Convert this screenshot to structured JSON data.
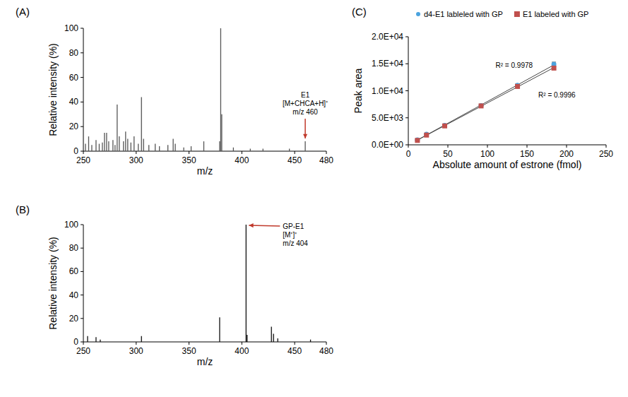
{
  "chart_data": [
    {
      "panel": "(A)",
      "type": "stem",
      "xlabel": "m/z",
      "ylabel": "Relative intensity (%)",
      "xlim": [
        250,
        480
      ],
      "xticks": [
        250,
        300,
        350,
        400,
        450,
        480
      ],
      "ylim": [
        0,
        100
      ],
      "yticks": [
        0,
        20,
        40,
        60,
        80,
        100
      ],
      "color": "#555555",
      "x": [
        252,
        255,
        258,
        262,
        265,
        268,
        270,
        272,
        274,
        278,
        280,
        282,
        284,
        288,
        290,
        292,
        295,
        298,
        302,
        305,
        307,
        312,
        318,
        322,
        330,
        335,
        337,
        345,
        352,
        364,
        379,
        380,
        381,
        392,
        408,
        420,
        445,
        460
      ],
      "values": [
        6,
        12,
        5,
        9,
        6,
        7,
        15,
        15,
        8,
        9,
        5,
        38,
        12,
        8,
        16,
        10,
        7,
        12,
        6,
        44,
        10,
        5,
        6,
        4,
        5,
        10,
        6,
        3,
        4,
        8,
        8,
        100,
        30,
        3,
        2,
        2,
        2,
        8
      ],
      "annotation": {
        "texts": [
          "E1",
          "[M+CHCA+H]⁺",
          "m/z 460"
        ],
        "x": 460,
        "y": 8,
        "color": "#c0392b"
      }
    },
    {
      "panel": "(B)",
      "type": "stem",
      "xlabel": "m/z",
      "ylabel": "Relative intensity (%)",
      "xlim": [
        250,
        480
      ],
      "xticks": [
        250,
        300,
        350,
        400,
        450,
        480
      ],
      "ylim": [
        0,
        100
      ],
      "yticks": [
        0,
        20,
        40,
        60,
        80,
        100
      ],
      "color": "#111111",
      "x": [
        254,
        262,
        266,
        305,
        379,
        404,
        405,
        428,
        430,
        434,
        465
      ],
      "values": [
        5,
        4,
        2,
        5,
        21,
        100,
        6,
        13,
        7,
        3,
        2
      ],
      "annotation": {
        "texts": [
          "GP-E1",
          "[M⁺]⁺",
          "m/z 404"
        ],
        "x": 404,
        "y": 100,
        "color": "#c0392b"
      }
    },
    {
      "panel": "(C)",
      "type": "scatter",
      "xlabel": "Absolute amount of estrone (fmol)",
      "ylabel": "Peak area",
      "xlim": [
        0,
        250
      ],
      "xticks": [
        0,
        50,
        100,
        150,
        200,
        250
      ],
      "ylim": [
        0,
        20000
      ],
      "yticks": [
        {
          "value": 0,
          "label": "0.0E+00"
        },
        {
          "value": 5000,
          "label": "5.0E+03"
        },
        {
          "value": 10000,
          "label": "1.0E+04"
        },
        {
          "value": 15000,
          "label": "1.5E+04"
        },
        {
          "value": 20000,
          "label": "2.0E+04"
        }
      ],
      "legend": "top",
      "series": [
        {
          "name": "d4-E1 lableled with GP",
          "color": "#4aa3df",
          "marker": "circle",
          "x": [
            11.5,
            23,
            46,
            92,
            138,
            184
          ],
          "values": [
            900,
            1950,
            3600,
            7250,
            11000,
            14900
          ],
          "errors": [
            80,
            150,
            120,
            100,
            300,
            400
          ],
          "fit_label": "R² = 0.9978"
        },
        {
          "name": "E1 labeled with GP",
          "color": "#c0504d",
          "marker": "square",
          "x": [
            11.5,
            23,
            46,
            92,
            138,
            184
          ],
          "values": [
            820,
            1800,
            3500,
            7200,
            10800,
            14200
          ],
          "errors": [
            60,
            100,
            100,
            80,
            200,
            300
          ],
          "fit_label": "R² = 0.9996"
        }
      ]
    }
  ]
}
